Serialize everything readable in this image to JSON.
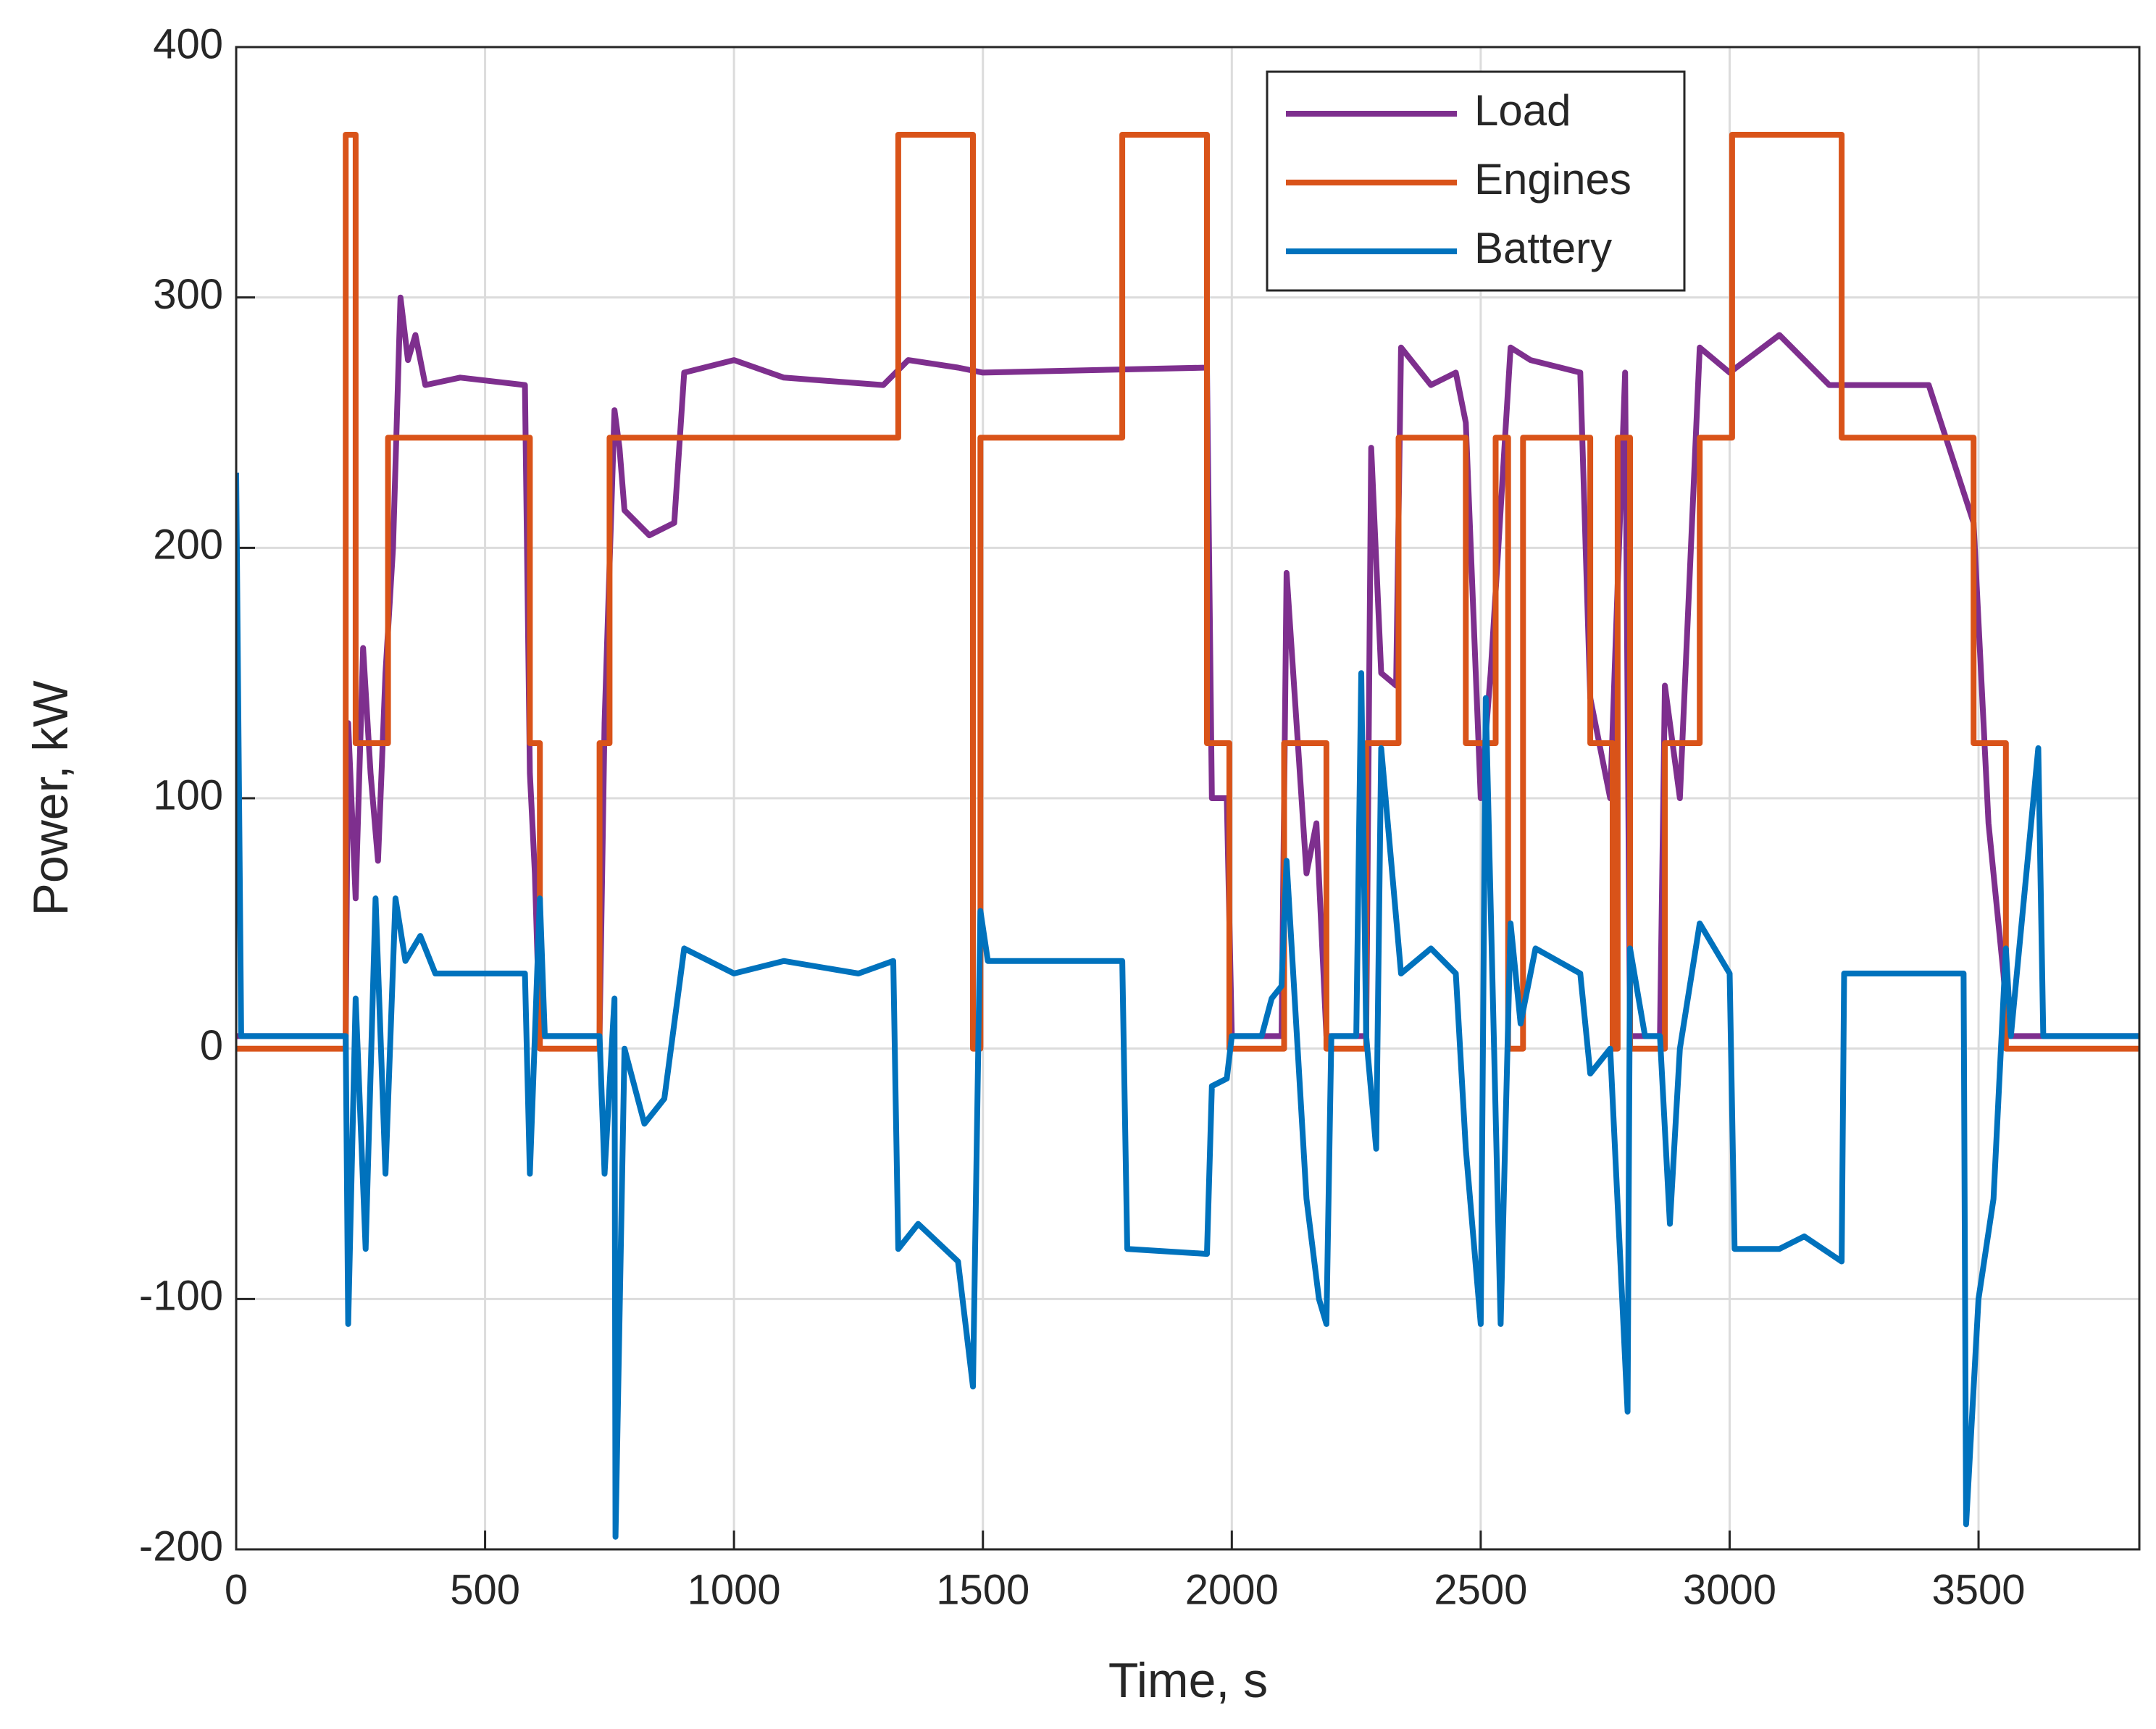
{
  "chart_data": {
    "type": "line",
    "xlabel": "Time, s",
    "ylabel": "Power, kW",
    "xlim": [
      0,
      3823
    ],
    "ylim": [
      -200,
      400
    ],
    "xticks": [
      0,
      500,
      1000,
      1500,
      2000,
      2500,
      3000,
      3500
    ],
    "yticks": [
      -200,
      -100,
      0,
      100,
      200,
      300,
      400
    ],
    "grid": true,
    "legend": "upper right",
    "series": [
      {
        "name": "Load",
        "color": "#7e2f8e",
        "x": [
          0,
          220,
          225,
          240,
          255,
          270,
          285,
          300,
          315,
          330,
          345,
          360,
          380,
          450,
          580,
          590,
          600,
          610,
          730,
          740,
          760,
          770,
          780,
          830,
          880,
          900,
          1000,
          1100,
          1300,
          1350,
          1450,
          1500,
          1950,
          1960,
          1990,
          2000,
          2100,
          2110,
          2150,
          2170,
          2190,
          2270,
          2280,
          2300,
          2330,
          2340,
          2400,
          2450,
          2470,
          2500,
          2520,
          2560,
          2600,
          2700,
          2720,
          2760,
          2790,
          2800,
          2860,
          2870,
          2900,
          2940,
          3000,
          3100,
          3200,
          3400,
          3490,
          3520,
          3550,
          3560,
          3823
        ],
        "values": [
          5,
          5,
          130,
          60,
          160,
          110,
          75,
          150,
          200,
          300,
          275,
          285,
          265,
          268,
          265,
          110,
          70,
          5,
          5,
          130,
          255,
          240,
          215,
          205,
          210,
          270,
          275,
          268,
          265,
          275,
          272,
          270,
          272,
          100,
          100,
          5,
          5,
          190,
          70,
          90,
          5,
          5,
          240,
          150,
          145,
          280,
          265,
          270,
          250,
          100,
          150,
          280,
          275,
          270,
          140,
          100,
          270,
          5,
          5,
          145,
          100,
          280,
          270,
          285,
          265,
          265,
          210,
          90,
          30,
          5,
          5
        ]
      },
      {
        "name": "Engines",
        "color": "#d95319",
        "x": [
          0,
          220,
          220,
          240,
          240,
          305,
          305,
          590,
          590,
          610,
          610,
          730,
          730,
          750,
          750,
          1330,
          1330,
          1480,
          1480,
          1495,
          1495,
          1780,
          1780,
          1950,
          1950,
          1995,
          1995,
          2105,
          2105,
          2190,
          2190,
          2270,
          2270,
          2335,
          2335,
          2470,
          2470,
          2530,
          2530,
          2555,
          2555,
          2585,
          2585,
          2720,
          2720,
          2765,
          2765,
          2775,
          2775,
          2800,
          2800,
          2870,
          2870,
          2940,
          2940,
          3005,
          3005,
          3225,
          3225,
          3490,
          3490,
          3555,
          3555,
          3823
        ],
        "values": [
          0,
          0,
          365,
          365,
          122,
          122,
          244,
          244,
          122,
          122,
          0,
          0,
          122,
          122,
          244,
          244,
          365,
          365,
          0,
          0,
          244,
          244,
          365,
          365,
          122,
          122,
          0,
          0,
          122,
          122,
          0,
          0,
          122,
          122,
          244,
          244,
          122,
          122,
          244,
          244,
          0,
          0,
          244,
          244,
          122,
          122,
          0,
          0,
          244,
          244,
          0,
          0,
          122,
          122,
          244,
          244,
          365,
          365,
          244,
          244,
          122,
          122,
          0,
          0
        ]
      },
      {
        "name": "Battery",
        "color": "#0072bd",
        "x": [
          0,
          10,
          220,
          225,
          240,
          260,
          280,
          300,
          320,
          340,
          370,
          400,
          580,
          590,
          610,
          620,
          730,
          740,
          760,
          762,
          780,
          820,
          860,
          900,
          1000,
          1100,
          1250,
          1320,
          1330,
          1370,
          1450,
          1480,
          1495,
          1510,
          1780,
          1790,
          1950,
          1960,
          1990,
          2000,
          2060,
          2080,
          2100,
          2110,
          2150,
          2175,
          2190,
          2200,
          2250,
          2260,
          2270,
          2290,
          2300,
          2340,
          2400,
          2450,
          2470,
          2500,
          2510,
          2540,
          2560,
          2580,
          2610,
          2700,
          2720,
          2760,
          2795,
          2800,
          2830,
          2860,
          2880,
          2900,
          2940,
          3000,
          3010,
          3100,
          3150,
          3225,
          3230,
          3470,
          3475,
          3500,
          3530,
          3555,
          3565,
          3620,
          3630,
          3823
        ],
        "values": [
          230,
          5,
          5,
          -110,
          20,
          -80,
          60,
          -50,
          60,
          35,
          45,
          30,
          30,
          -50,
          60,
          5,
          5,
          -50,
          20,
          -195,
          0,
          -30,
          -20,
          40,
          30,
          35,
          30,
          35,
          -80,
          -70,
          -85,
          -135,
          55,
          35,
          35,
          -80,
          -82,
          -15,
          -12,
          5,
          5,
          20,
          25,
          75,
          -60,
          -100,
          -110,
          5,
          5,
          150,
          5,
          -40,
          120,
          30,
          40,
          30,
          -40,
          -110,
          140,
          -110,
          50,
          10,
          40,
          30,
          -10,
          0,
          -145,
          40,
          5,
          5,
          -70,
          0,
          50,
          30,
          -80,
          -80,
          -75,
          -85,
          30,
          30,
          -190,
          -100,
          -60,
          40,
          5,
          120,
          5,
          5
        ]
      }
    ]
  }
}
